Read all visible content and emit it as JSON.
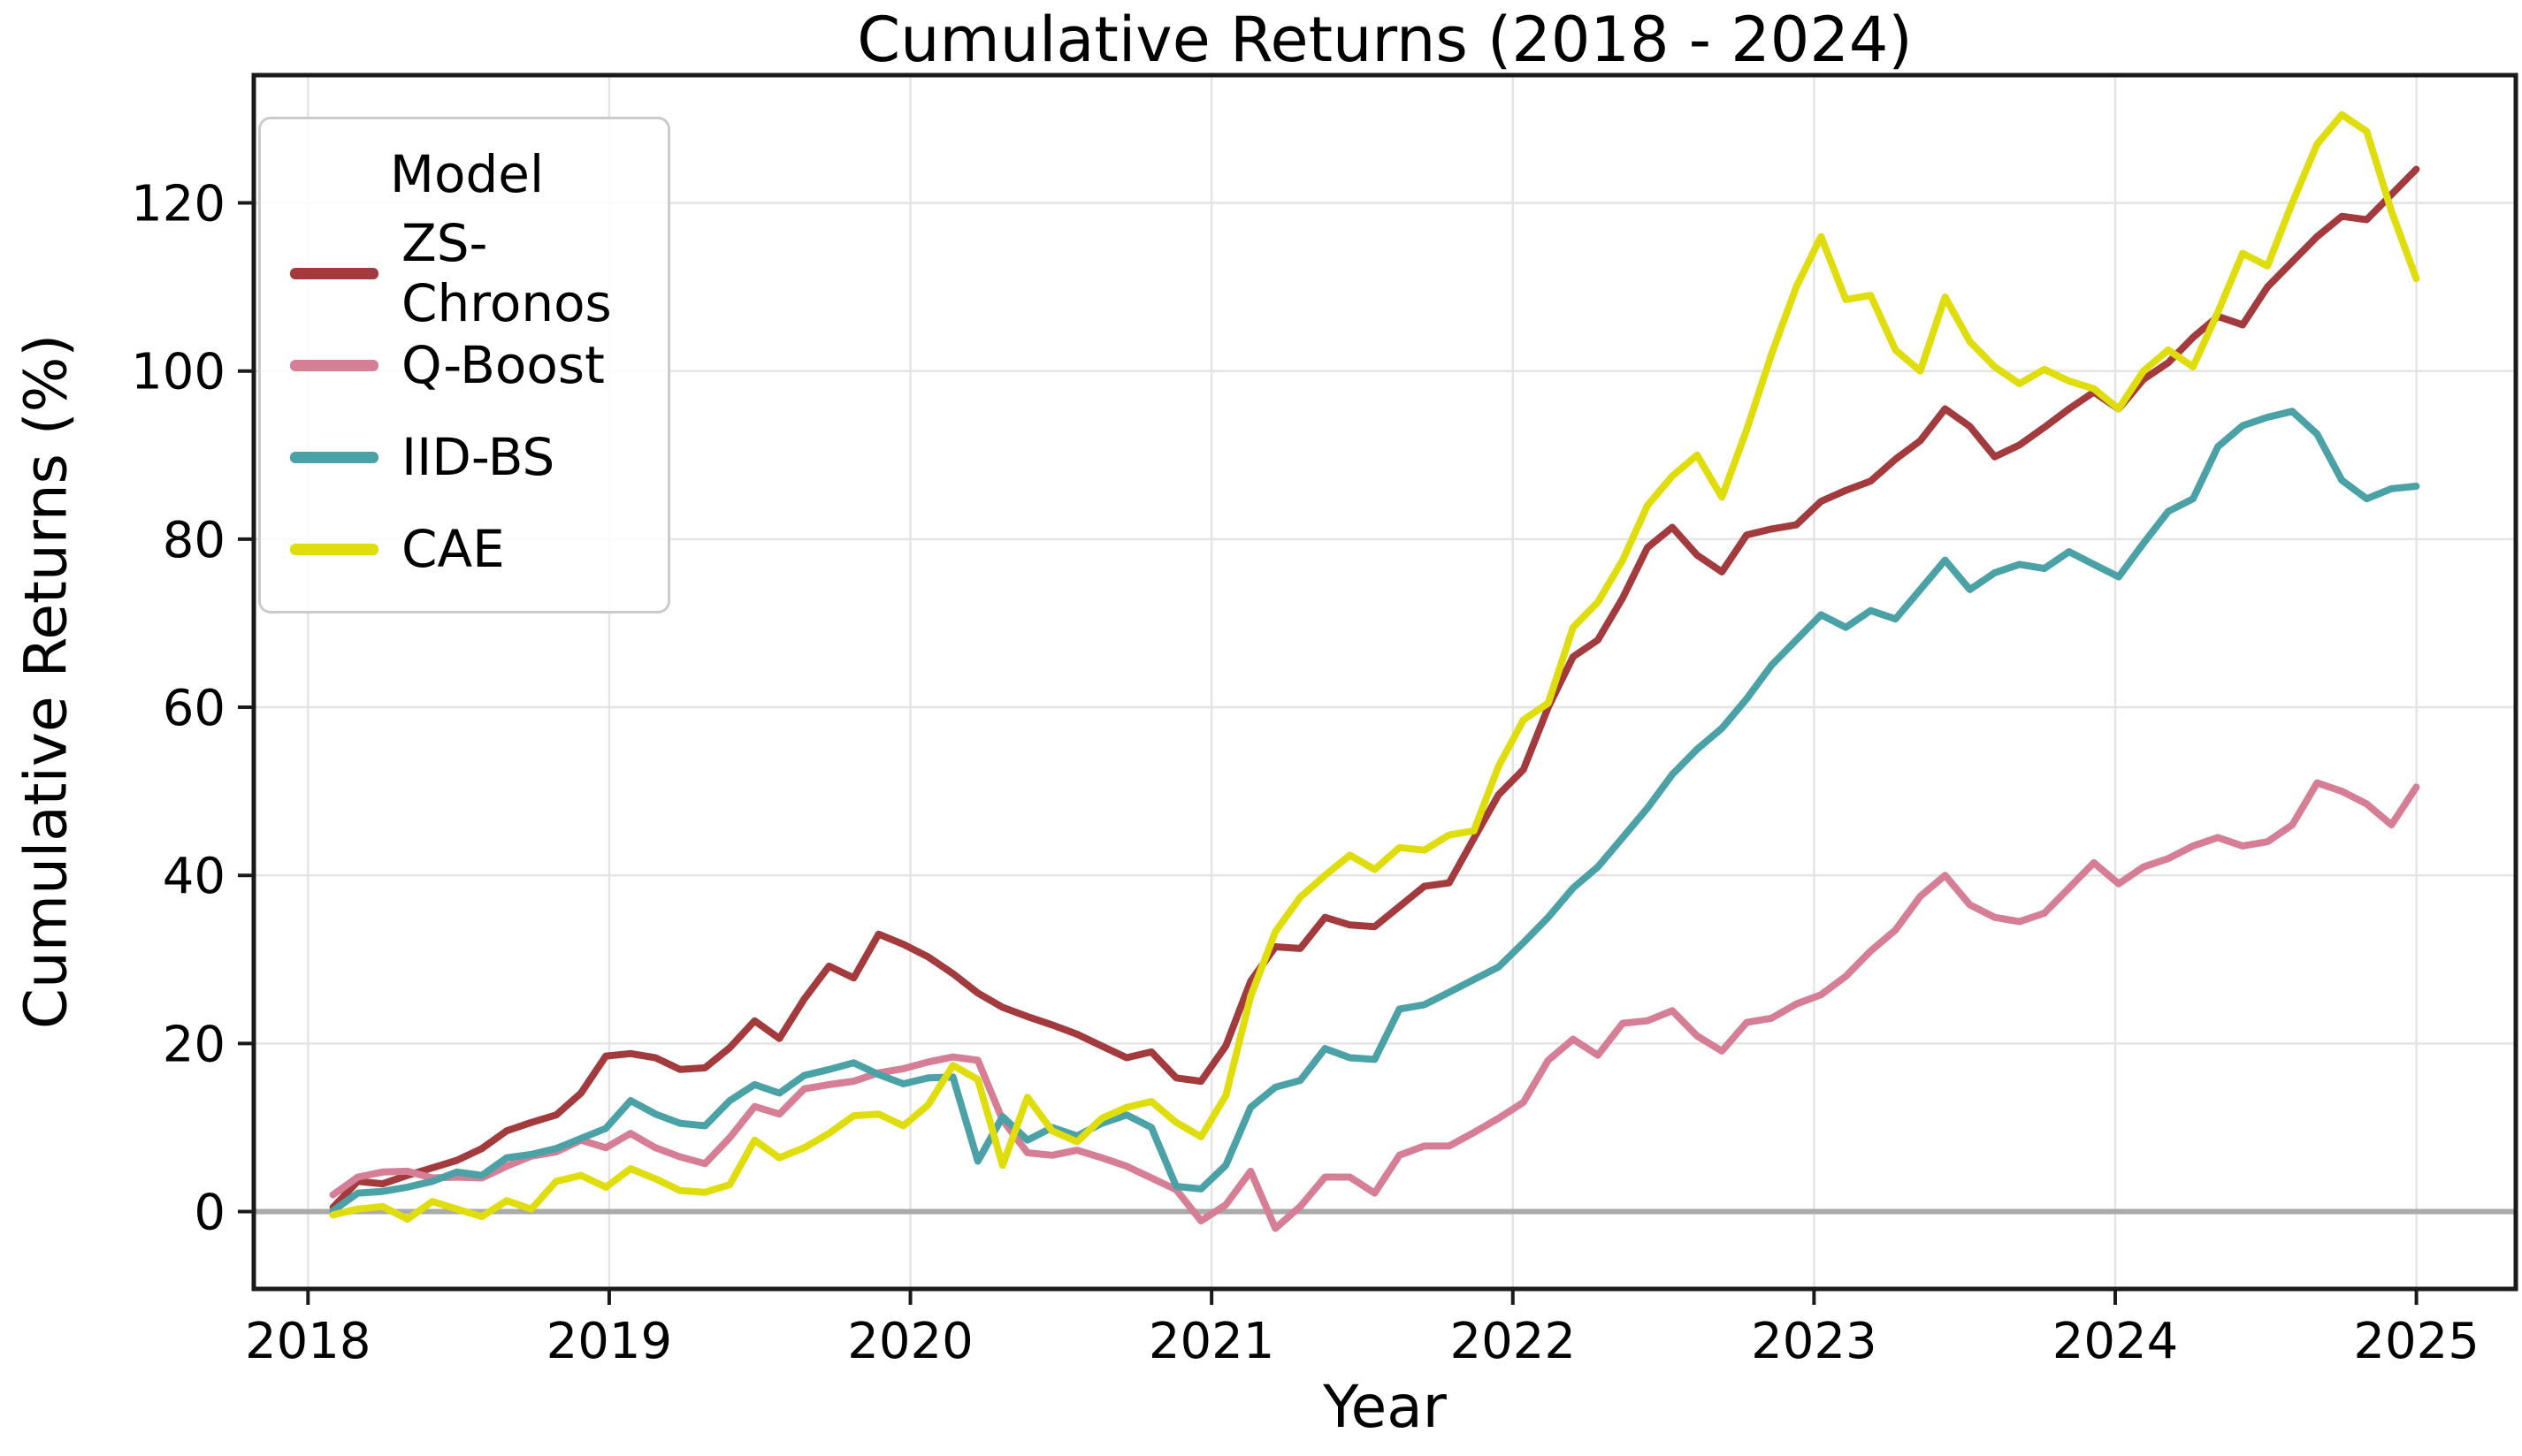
{
  "page": {
    "type": "matplotlib-figure"
  },
  "chart_data": {
    "type": "line",
    "title": "Cumulative Returns (2018 - 2024)",
    "xlabel": "Year",
    "ylabel": "Cumulative Returns (%)",
    "x_ticks": [
      2018,
      2019,
      2020,
      2021,
      2022,
      2023,
      2024,
      2025
    ],
    "y_ticks": [
      0,
      20,
      40,
      60,
      80,
      100,
      120
    ],
    "xlim": [
      2017.82,
      2025.33
    ],
    "ylim": [
      -9.2,
      135.2
    ],
    "grid": true,
    "zero_line": true,
    "x_start": 2018.083,
    "x_step": 0.08234,
    "point_frequency": "monthly, Jan 2018 - Jan 2025",
    "legend": {
      "title": "Model",
      "position": "upper left"
    },
    "colors": {
      "grid": "#e4e4e4",
      "zero_line": "#aaaaaa",
      "spine": "#1a1a1a"
    },
    "series": [
      {
        "name": "ZS-Chronos",
        "color": "#A33B3E",
        "values": [
          0.5,
          3.6,
          3.3,
          4.3,
          5.2,
          6.1,
          7.5,
          9.6,
          10.6,
          11.5,
          14.1,
          18.5,
          18.8,
          18.3,
          16.9,
          17.1,
          19.5,
          22.7,
          20.6,
          25.3,
          29.2,
          27.8,
          33.0,
          31.8,
          30.3,
          28.3,
          26.0,
          24.3,
          23.2,
          22.2,
          21.1,
          19.7,
          18.3,
          19.0,
          15.9,
          15.5,
          19.7,
          27.4,
          31.5,
          31.3,
          35.0,
          34.1,
          33.9,
          36.3,
          38.7,
          39.1,
          44.4,
          49.6,
          52.6,
          60.0,
          66.0,
          68.0,
          73.0,
          79.0,
          81.4,
          78.1,
          76.1,
          80.5,
          81.2,
          81.7,
          84.5,
          85.8,
          86.9,
          89.5,
          91.7,
          95.5,
          93.4,
          89.8,
          91.2,
          93.3,
          95.5,
          97.5,
          95.5,
          99.0,
          101.0,
          104.0,
          106.5,
          105.5,
          110.0,
          113.0,
          116.0,
          118.4,
          118.0,
          121.0,
          124.0
        ]
      },
      {
        "name": "Q-Boost",
        "color": "#D57E96",
        "values": [
          2.0,
          4.1,
          4.7,
          4.8,
          4.0,
          4.1,
          4.0,
          5.4,
          6.6,
          7.1,
          8.5,
          7.6,
          9.3,
          7.6,
          6.5,
          5.7,
          8.8,
          12.5,
          11.6,
          14.6,
          15.1,
          15.5,
          16.5,
          17.0,
          17.8,
          18.4,
          18.0,
          10.9,
          7.0,
          6.7,
          7.3,
          6.4,
          5.4,
          4.0,
          2.6,
          -1.1,
          0.8,
          4.8,
          -2.0,
          0.6,
          4.1,
          4.1,
          2.2,
          6.7,
          7.8,
          7.8,
          9.4,
          11.1,
          13.0,
          18.0,
          20.5,
          18.6,
          22.4,
          22.7,
          23.9,
          20.9,
          19.1,
          22.5,
          23.0,
          24.7,
          25.8,
          28.0,
          31.0,
          33.5,
          37.5,
          40.0,
          36.5,
          35.0,
          34.5,
          35.5,
          38.5,
          41.5,
          39.0,
          41.0,
          42.0,
          43.5,
          44.5,
          43.5,
          44.0,
          46.0,
          51.0,
          50.0,
          48.5,
          46.0,
          50.5
        ]
      },
      {
        "name": "IID-BS",
        "color": "#4BA2A6",
        "values": [
          0.1,
          2.2,
          2.4,
          2.9,
          3.6,
          4.7,
          4.3,
          6.4,
          6.8,
          7.5,
          8.7,
          9.9,
          13.2,
          11.6,
          10.5,
          10.2,
          13.2,
          15.1,
          14.1,
          16.2,
          16.9,
          17.7,
          16.3,
          15.2,
          15.9,
          16.0,
          6.0,
          11.3,
          8.5,
          10.0,
          9.0,
          10.5,
          11.5,
          10.0,
          3.0,
          2.7,
          5.5,
          12.4,
          14.8,
          15.6,
          19.4,
          18.3,
          18.1,
          24.1,
          24.6,
          26.1,
          27.6,
          29.1,
          32.0,
          35.0,
          38.5,
          41.0,
          44.5,
          48.0,
          52.0,
          55.0,
          57.5,
          61.0,
          65.0,
          68.0,
          71.0,
          69.5,
          71.5,
          70.5,
          74.0,
          77.5,
          74.0,
          76.0,
          77.0,
          76.5,
          78.5,
          77.0,
          75.5,
          79.5,
          83.3,
          84.8,
          91.0,
          93.5,
          94.5,
          95.2,
          92.5,
          87.0,
          84.8,
          86.0,
          86.3
        ]
      },
      {
        "name": "CAE",
        "color": "#DFDE0C",
        "values": [
          -0.4,
          0.3,
          0.6,
          -0.9,
          1.2,
          0.3,
          -0.6,
          1.3,
          0.3,
          3.6,
          4.3,
          2.9,
          5.1,
          3.9,
          2.5,
          2.3,
          3.2,
          8.5,
          6.4,
          7.6,
          9.3,
          11.4,
          11.6,
          10.2,
          12.7,
          17.4,
          15.7,
          5.5,
          13.6,
          9.6,
          8.3,
          11.1,
          12.4,
          13.1,
          10.6,
          8.9,
          13.8,
          25.6,
          33.3,
          37.4,
          40.0,
          42.4,
          40.7,
          43.3,
          43.0,
          44.8,
          45.3,
          53.0,
          58.5,
          60.5,
          69.5,
          72.5,
          77.5,
          84.0,
          87.5,
          90.0,
          85.0,
          93.0,
          102.0,
          110.0,
          116.0,
          108.5,
          109.0,
          102.5,
          100.0,
          108.8,
          103.5,
          100.5,
          98.5,
          100.2,
          98.8,
          97.9,
          95.5,
          100.0,
          102.5,
          100.5,
          107.0,
          114.0,
          112.5,
          120.0,
          127.0,
          130.5,
          128.5,
          119.0,
          111.0
        ]
      }
    ]
  }
}
